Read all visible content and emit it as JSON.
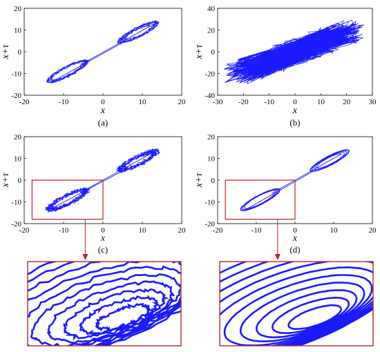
{
  "chart_data": [
    {
      "type": "line",
      "panel_label": "(a)",
      "xlabel": "x",
      "ylabel": "x+τ",
      "xlim": [
        -20,
        20
      ],
      "ylim": [
        -20,
        20
      ],
      "xticks": [
        "-20",
        "-10",
        "0",
        "10",
        "20"
      ],
      "yticks": [
        "-20",
        "-10",
        "0",
        "10",
        "20"
      ],
      "series_color": "#1a1aff",
      "attractor": {
        "kind": "clean",
        "loops": 9,
        "center": [
          0,
          0
        ],
        "extent": [
          17,
          18
        ],
        "noise": 0.3
      },
      "grid": false
    },
    {
      "type": "line",
      "panel_label": "(b)",
      "xlabel": "x",
      "ylabel": "x+τ",
      "xlim": [
        -30,
        30
      ],
      "ylim": [
        -40,
        40
      ],
      "xticks": [
        "-30",
        "-20",
        "-10",
        "0",
        "10",
        "20",
        "30"
      ],
      "yticks": [
        "-40",
        "-20",
        "0",
        "20",
        "40"
      ],
      "series_color": "#1a1aff",
      "attractor": {
        "kind": "noisy",
        "points": 900,
        "center": [
          0,
          0
        ],
        "extent": [
          22,
          20
        ],
        "noise": 6
      },
      "grid": false
    },
    {
      "type": "line",
      "panel_label": "(c)",
      "xlabel": "x",
      "ylabel": "x+τ",
      "xlim": [
        -20,
        20
      ],
      "ylim": [
        -20,
        20
      ],
      "xticks": [
        "-20",
        "-10",
        "0",
        "10",
        "20"
      ],
      "yticks": [
        "-20",
        "-10",
        "0",
        "10",
        "20"
      ],
      "series_color": "#1a1aff",
      "attractor": {
        "kind": "clean",
        "loops": 9,
        "center": [
          0,
          0
        ],
        "extent": [
          16,
          16
        ],
        "noise": 0.6
      },
      "zoom_box": {
        "x": [
          -18,
          0
        ],
        "y": [
          -18,
          0
        ]
      },
      "grid": false
    },
    {
      "type": "line",
      "panel_label": "(d)",
      "xlabel": "x",
      "ylabel": "x+τ",
      "xlim": [
        -20,
        20
      ],
      "ylim": [
        -20,
        20
      ],
      "xticks": [
        "-20",
        "-10",
        "0",
        "10",
        "20"
      ],
      "yticks": [
        "-20",
        "-10",
        "0",
        "10",
        "20"
      ],
      "series_color": "#1a1aff",
      "attractor": {
        "kind": "clean",
        "loops": 9,
        "center": [
          0,
          0
        ],
        "extent": [
          16,
          16
        ],
        "noise": 0.05
      },
      "zoom_box": {
        "x": [
          -18,
          0
        ],
        "y": [
          -18,
          0
        ]
      },
      "grid": false
    }
  ],
  "colors": {
    "trajectory": "#1a1aff",
    "zoom_box": "#b22222",
    "zoom_frame": "#a52a2a",
    "axes": "#000000"
  },
  "zoom_insets": [
    {
      "source_panel": "(c)",
      "noise": 0.6
    },
    {
      "source_panel": "(d)",
      "noise": 0.05
    }
  ]
}
